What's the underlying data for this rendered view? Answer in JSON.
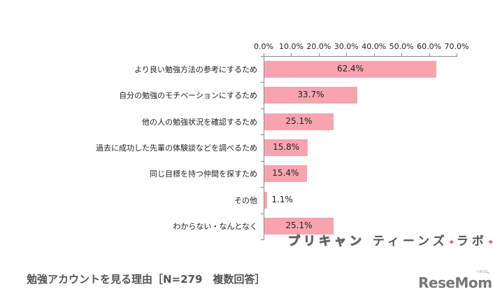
{
  "chart_data": {
    "type": "bar",
    "orientation": "horizontal",
    "title": "勉強アカウントを見る理由［N=279　複数回答］",
    "xlabel": "",
    "ylabel": "",
    "xlim": [
      0,
      70
    ],
    "x_ticks": [
      "0.0%",
      "10.0%",
      "20.0%",
      "30.0%",
      "40.0%",
      "50.0%",
      "60.0%",
      "70.0%"
    ],
    "x_axis_position": "top",
    "grid": false,
    "legend": null,
    "categories": [
      "より良い勉強方法の参考にするため",
      "自分の勉強のモチベーションにするため",
      "他の人の勉強状況を確認するため",
      "過去に成功した先輩の体験談などを調べるため",
      "同じ目標を持つ仲間を探すため",
      "その他",
      "わからない・なんとなく"
    ],
    "values": [
      62.4,
      33.7,
      25.1,
      15.8,
      15.4,
      1.1,
      25.1
    ],
    "value_labels": [
      "62.4%",
      "33.7%",
      "25.1%",
      "15.8%",
      "15.4%",
      "1.1%",
      "25.1%"
    ],
    "bar_color": "#f7a4ae"
  },
  "watermark": {
    "part1": "プリキャン",
    "part2": "ティーンズ",
    "spark": "✦",
    "part3": "ラボ"
  },
  "footer": {
    "title": "勉強アカウントを見る理由［N=279　複数回答］",
    "logo": "ReseMom",
    "logo_sub": "リセマム"
  }
}
